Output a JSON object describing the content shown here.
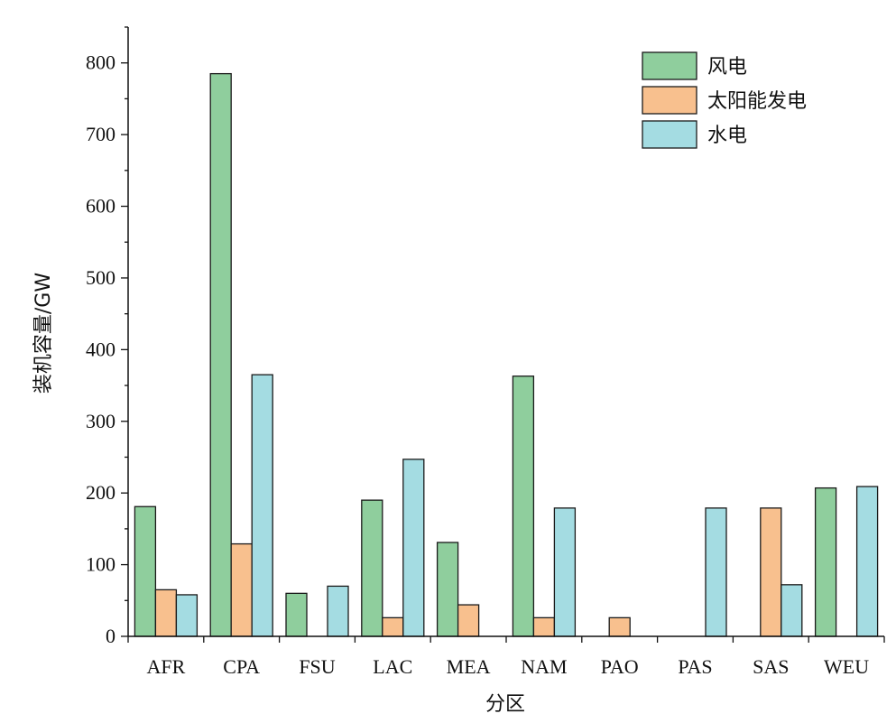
{
  "chart_data": {
    "type": "bar",
    "xlabel": "分区",
    "ylabel": "装机容量/GW",
    "ylim": [
      0,
      850
    ],
    "yticks": [
      0,
      100,
      200,
      300,
      400,
      500,
      600,
      700,
      800
    ],
    "categories": [
      "AFR",
      "CPA",
      "FSU",
      "LAC",
      "MEA",
      "NAM",
      "PAO",
      "PAS",
      "SAS",
      "WEU"
    ],
    "legend_position": "top-right",
    "series": [
      {
        "name": "风电",
        "color": "#8fce9d",
        "values": [
          181,
          785,
          60,
          190,
          131,
          363,
          0,
          0,
          0,
          207
        ]
      },
      {
        "name": "太阳能发电",
        "color": "#f8c08e",
        "values": [
          65,
          129,
          0,
          26,
          44,
          26,
          26,
          0,
          179,
          0
        ]
      },
      {
        "name": "水电",
        "color": "#a4dce2",
        "values": [
          58,
          365,
          70,
          247,
          0,
          179,
          0,
          179,
          72,
          209
        ]
      }
    ]
  }
}
